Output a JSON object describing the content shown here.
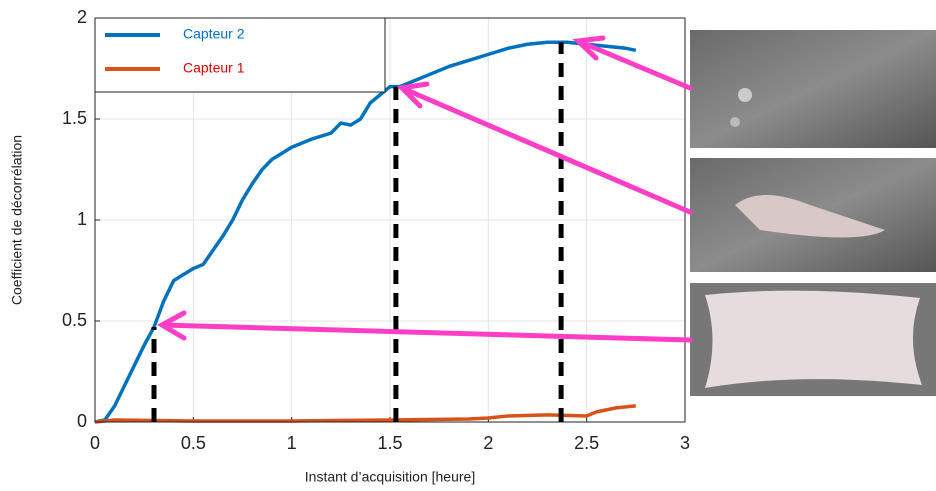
{
  "chart_data": {
    "type": "line",
    "x_label": "Instant d’acquisition [heure]",
    "y_label": "Coefficient de décorrélation",
    "xlim": [
      0,
      3
    ],
    "ylim": [
      0,
      2
    ],
    "xticks": [
      0,
      0.5,
      1,
      1.5,
      2,
      2.5,
      3
    ],
    "yticks": [
      0,
      0.5,
      1,
      1.5,
      2
    ],
    "grid": true,
    "markers": [
      0.3,
      1.53,
      2.37
    ],
    "series": [
      {
        "name": "Capteur 2",
        "color": "#0072bd",
        "legend_text_color": "#0070c0",
        "x": [
          0,
          0.05,
          0.1,
          0.15,
          0.2,
          0.25,
          0.3,
          0.35,
          0.4,
          0.45,
          0.5,
          0.55,
          0.6,
          0.65,
          0.7,
          0.75,
          0.8,
          0.85,
          0.9,
          0.95,
          1.0,
          1.05,
          1.1,
          1.2,
          1.25,
          1.3,
          1.35,
          1.4,
          1.45,
          1.5,
          1.55,
          1.6,
          1.7,
          1.8,
          1.9,
          2.0,
          2.1,
          2.2,
          2.3,
          2.4,
          2.5,
          2.6,
          2.7,
          2.75
        ],
        "values": [
          0,
          0.01,
          0.08,
          0.18,
          0.28,
          0.38,
          0.47,
          0.6,
          0.7,
          0.73,
          0.76,
          0.78,
          0.85,
          0.92,
          1.0,
          1.1,
          1.18,
          1.25,
          1.3,
          1.33,
          1.36,
          1.38,
          1.4,
          1.43,
          1.48,
          1.47,
          1.5,
          1.58,
          1.62,
          1.66,
          1.66,
          1.68,
          1.72,
          1.76,
          1.79,
          1.82,
          1.85,
          1.87,
          1.88,
          1.88,
          1.87,
          1.86,
          1.85,
          1.84
        ]
      },
      {
        "name": "Capteur 1",
        "color": "#d95319",
        "legend_text_color": "#e00000",
        "x": [
          0,
          0.1,
          0.5,
          1.0,
          1.5,
          1.9,
          2.0,
          2.1,
          2.3,
          2.5,
          2.55,
          2.65,
          2.75
        ],
        "values": [
          0,
          0.01,
          0.005,
          0.005,
          0.01,
          0.015,
          0.02,
          0.03,
          0.035,
          0.03,
          0.05,
          0.07,
          0.08
        ]
      }
    ]
  }
}
